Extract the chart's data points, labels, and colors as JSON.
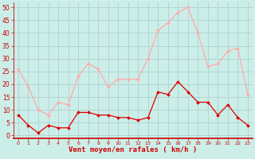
{
  "hours": [
    0,
    1,
    2,
    3,
    4,
    5,
    6,
    7,
    8,
    9,
    10,
    11,
    12,
    13,
    14,
    15,
    16,
    17,
    18,
    19,
    20,
    21,
    22,
    23
  ],
  "wind_avg": [
    8,
    4,
    1,
    4,
    3,
    3,
    9,
    9,
    8,
    8,
    7,
    7,
    6,
    7,
    17,
    16,
    21,
    17,
    13,
    13,
    8,
    12,
    7,
    4
  ],
  "wind_gust": [
    26,
    19,
    10,
    8,
    13,
    12,
    23,
    28,
    26,
    19,
    22,
    22,
    22,
    30,
    41,
    44,
    48,
    50,
    40,
    27,
    28,
    33,
    34,
    16
  ],
  "avg_color": "#dd0000",
  "gust_color": "#ffaaaa",
  "bg_color": "#cceee8",
  "grid_color": "#aacccc",
  "xlabel": "Vent moyen/en rafales ( km/h )",
  "ylabel_ticks": [
    0,
    5,
    10,
    15,
    20,
    25,
    30,
    35,
    40,
    45,
    50
  ],
  "ylim": [
    -1,
    52
  ],
  "xlim": [
    -0.5,
    23.5
  ],
  "tick_color": "#cc0000",
  "xlabel_color": "#cc0000",
  "xlabel_fontsize": 6.5,
  "ytick_fontsize": 5.5,
  "xtick_fontsize": 4.5,
  "marker_size": 2.0,
  "linewidth": 0.9
}
